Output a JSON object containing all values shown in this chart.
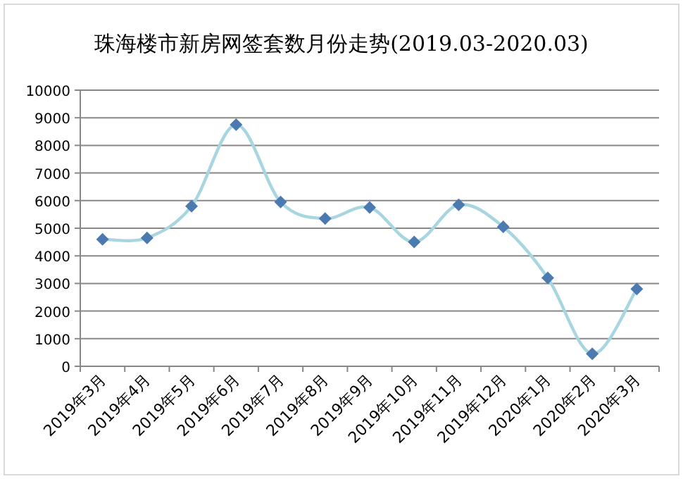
{
  "chart_data": {
    "type": "line",
    "title": "珠海楼市新房网签套数月份走势(2019.03-2020.03)",
    "categories": [
      "2019年3月",
      "2019年4月",
      "2019年5月",
      "2019年6月",
      "2019年7月",
      "2019年8月",
      "2019年9月",
      "2019年10月",
      "2019年11月",
      "2019年12月",
      "2020年1月",
      "2020年2月",
      "2020年3月"
    ],
    "series": [
      {
        "color": "#4a7ab0",
        "values": [
          4600,
          4650,
          5800,
          8750,
          5950,
          5350,
          5750,
          4500,
          5850,
          5050,
          3200,
          450,
          2800
        ]
      }
    ],
    "ylim": [
      0,
      10000
    ],
    "yticks": [
      0,
      1000,
      2000,
      3000,
      4000,
      5000,
      6000,
      7000,
      8000,
      9000,
      10000
    ],
    "grid": "y",
    "marker": "diamond",
    "line_style": "solid"
  }
}
